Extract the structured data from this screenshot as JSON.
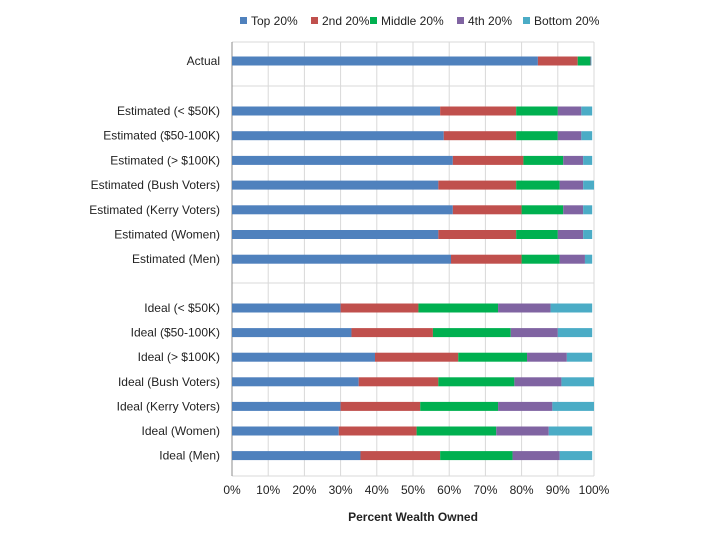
{
  "chart_data": {
    "type": "bar",
    "orientation": "horizontal",
    "stacked": true,
    "title": "",
    "xlabel": "Percent Wealth Owned",
    "ylabel": "",
    "xlim": [
      0,
      100
    ],
    "ticks": [
      "0%",
      "10%",
      "20%",
      "30%",
      "40%",
      "50%",
      "60%",
      "70%",
      "80%",
      "90%",
      "100%"
    ],
    "legend_position": "top",
    "grid": true,
    "categories": [
      "Actual",
      "Estimated (< $50K)",
      "Estimated ($50-100K)",
      "Estimated (> $100K)",
      "Estimated (Bush Voters)",
      "Estimated (Kerry Voters)",
      "Estimated (Women)",
      "Estimated (Men)",
      "Ideal (< $50K)",
      "Ideal ($50-100K)",
      "Ideal (> $100K)",
      "Ideal (Bush Voters)",
      "Ideal (Kerry Voters)",
      "Ideal (Women)",
      "Ideal (Men)"
    ],
    "series": [
      {
        "name": "Top 20%",
        "color": "#4f81bd",
        "values": [
          84.5,
          57.5,
          58.5,
          61.0,
          57.0,
          61.0,
          57.0,
          60.5,
          30.0,
          33.0,
          39.5,
          35.0,
          30.0,
          29.5,
          35.5
        ]
      },
      {
        "name": "2nd 20%",
        "color": "#c0504d",
        "values": [
          11.0,
          21.0,
          20.0,
          19.5,
          21.5,
          19.0,
          21.5,
          19.5,
          21.5,
          22.5,
          23.0,
          22.0,
          22.0,
          21.5,
          22.0
        ]
      },
      {
        "name": "Middle 20%",
        "color": "#00b050",
        "values": [
          3.5,
          11.5,
          11.5,
          11.0,
          12.0,
          11.5,
          11.5,
          10.5,
          22.0,
          21.5,
          19.0,
          21.0,
          21.5,
          22.0,
          20.0
        ]
      },
      {
        "name": "4th 20%",
        "color": "#8064a2",
        "values": [
          0.2,
          6.5,
          6.5,
          5.5,
          6.5,
          5.5,
          7.0,
          7.0,
          14.5,
          13.0,
          11.0,
          13.0,
          15.0,
          14.5,
          13.0
        ]
      },
      {
        "name": "Bottom 20%",
        "color": "#4bacc6",
        "values": [
          0.1,
          3.0,
          3.0,
          2.5,
          3.0,
          2.5,
          2.5,
          2.0,
          11.5,
          9.5,
          7.0,
          9.0,
          11.5,
          12.0,
          9.0
        ]
      }
    ]
  }
}
